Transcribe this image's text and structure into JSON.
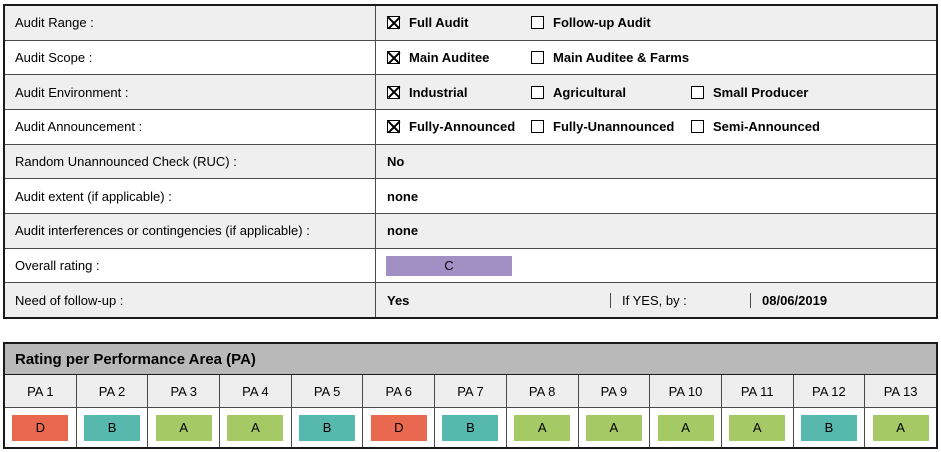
{
  "table1": {
    "rows": [
      {
        "label": "Audit Range :",
        "options": [
          {
            "label": "Full Audit",
            "checked": true
          },
          {
            "label": "Follow-up Audit",
            "checked": false
          }
        ]
      },
      {
        "label": "Audit Scope :",
        "options": [
          {
            "label": "Main Auditee",
            "checked": true
          },
          {
            "label": "Main Auditee & Farms",
            "checked": false
          }
        ]
      },
      {
        "label": "Audit Environment :",
        "options": [
          {
            "label": "Industrial",
            "checked": true
          },
          {
            "label": "Agricultural",
            "checked": false
          },
          {
            "label": "Small Producer",
            "checked": false
          }
        ]
      },
      {
        "label": "Audit Announcement :",
        "options": [
          {
            "label": "Fully-Announced",
            "checked": true
          },
          {
            "label": "Fully-Unannounced",
            "checked": false
          },
          {
            "label": "Semi-Announced",
            "checked": false
          }
        ]
      },
      {
        "label": "Random Unannounced Check (RUC) :",
        "value": "No"
      },
      {
        "label": "Audit extent (if applicable) :",
        "value": "none"
      },
      {
        "label": "Audit interferences or contingencies (if applicable) :",
        "value": "none"
      },
      {
        "label": "Overall rating :",
        "rating": "C",
        "rating_color": "#a290c5"
      },
      {
        "label": "Need of follow-up :",
        "value": "Yes",
        "if_yes_label": "If YES, by :",
        "if_yes_date": "08/06/2019"
      }
    ]
  },
  "pa_table": {
    "title": "Rating per Performance Area (PA)",
    "columns": [
      {
        "label": "PA 1",
        "rating": "D",
        "color": "#e8694f"
      },
      {
        "label": "PA 2",
        "rating": "B",
        "color": "#57b9ae"
      },
      {
        "label": "PA 3",
        "rating": "A",
        "color": "#a5c964"
      },
      {
        "label": "PA 4",
        "rating": "A",
        "color": "#a5c964"
      },
      {
        "label": "PA 5",
        "rating": "B",
        "color": "#57b9ae"
      },
      {
        "label": "PA 6",
        "rating": "D",
        "color": "#e8694f"
      },
      {
        "label": "PA 7",
        "rating": "B",
        "color": "#57b9ae"
      },
      {
        "label": "PA 8",
        "rating": "A",
        "color": "#a5c964"
      },
      {
        "label": "PA 9",
        "rating": "A",
        "color": "#a5c964"
      },
      {
        "label": "PA 10",
        "rating": "A",
        "color": "#a5c964"
      },
      {
        "label": "PA 11",
        "rating": "A",
        "color": "#a5c964"
      },
      {
        "label": "PA 12",
        "rating": "B",
        "color": "#57b9ae"
      },
      {
        "label": "PA 13",
        "rating": "A",
        "color": "#a5c964"
      }
    ]
  },
  "colors": {
    "rating_a": "#a5c964",
    "rating_b": "#57b9ae",
    "rating_c": "#a290c5",
    "rating_d": "#e8694f",
    "stripe": "#efefef",
    "header_gray": "#b9b9b9"
  }
}
